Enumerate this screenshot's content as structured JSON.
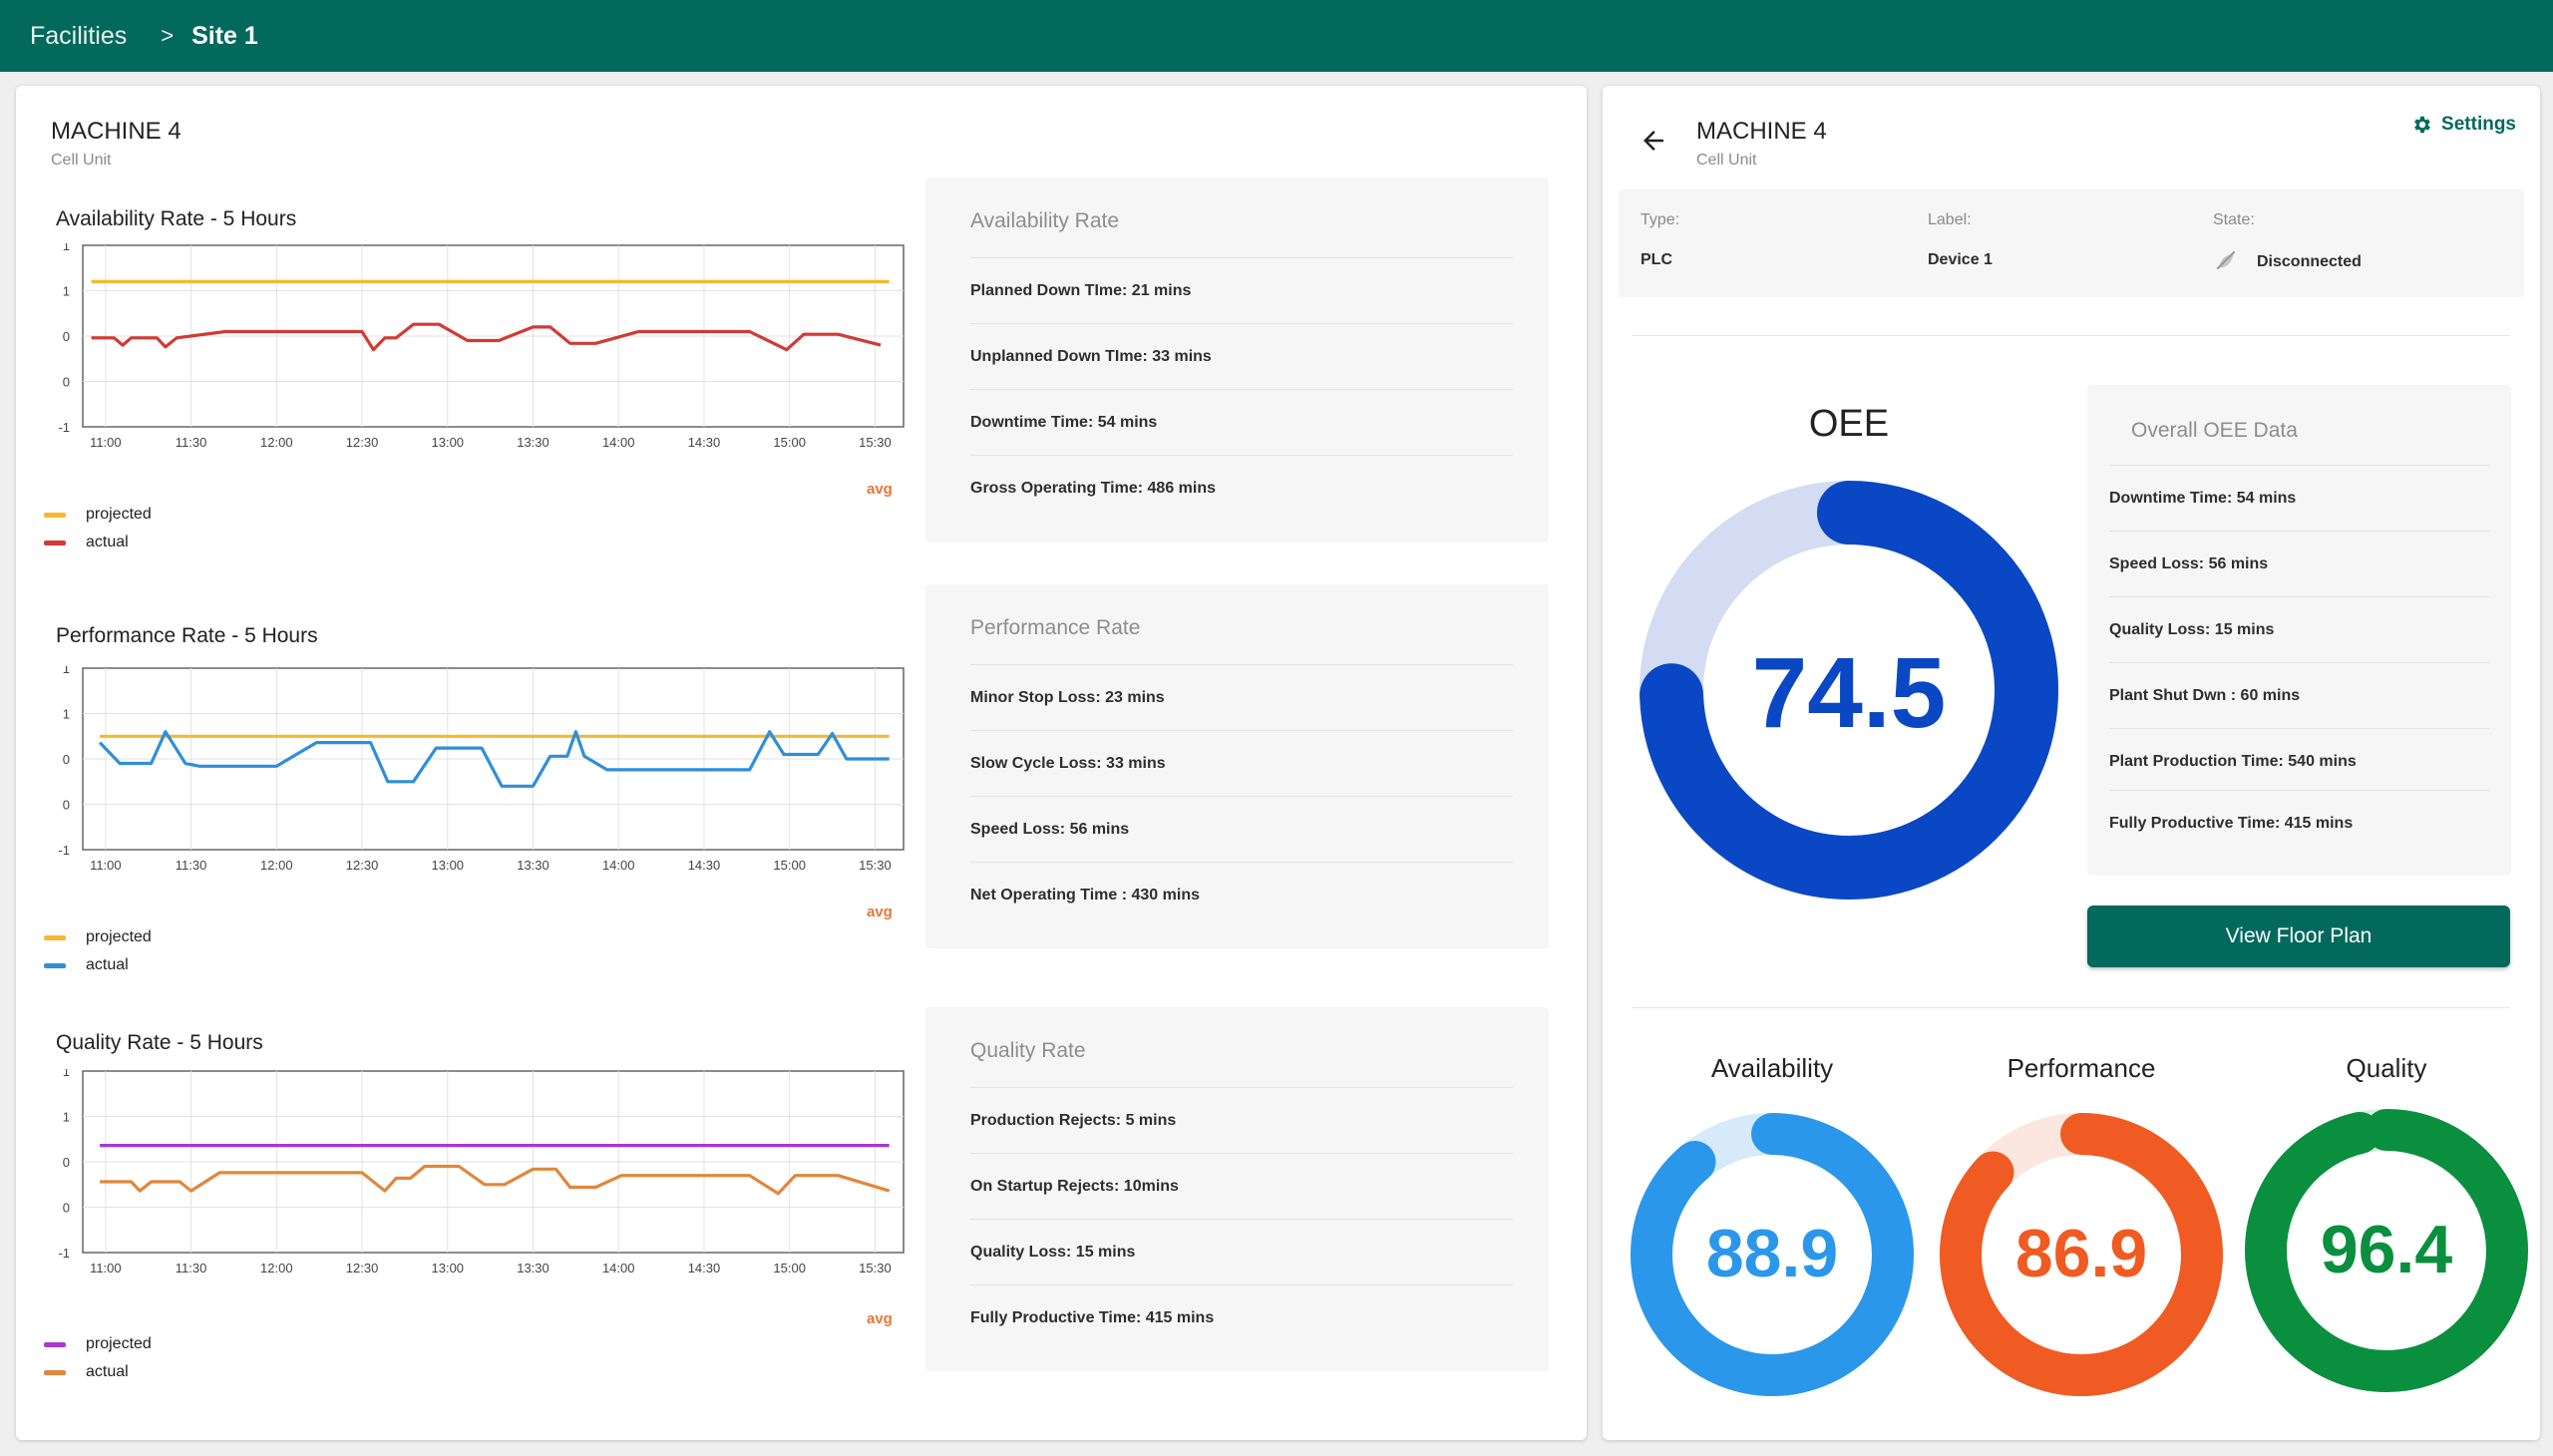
{
  "breadcrumb": {
    "parent": "Facilities",
    "separator": ">",
    "current": "Site 1"
  },
  "left": {
    "machine_name": "MACHINE 4",
    "machine_sub": "Cell Unit"
  },
  "right": {
    "machine_name": "MACHINE 4",
    "machine_sub": "Cell Unit",
    "settings_label": "Settings",
    "meta": {
      "type_label": "Type:",
      "type_value": "PLC",
      "label_label": "Label:",
      "label_value": "Device 1",
      "state_label": "State:",
      "state_value": "Disconnected"
    },
    "oee": {
      "title": "OEE",
      "value": "74.5",
      "percent": 74.5,
      "color": "#0a47c4",
      "track": "#d3dcf2"
    },
    "oee_card": {
      "title": "Overall OEE Data",
      "rows": [
        "Downtime Time: 54 mins",
        "Speed Loss: 56 mins",
        "Quality Loss: 15 mins",
        "Plant Shut Dwn : 60 mins",
        "Plant Production Time: 540 mins",
        "Fully Productive Time: 415 mins"
      ]
    },
    "floor_plan_label": "View Floor Plan",
    "gauges": [
      {
        "title": "Availability",
        "value": "88.9",
        "percent": 88.9,
        "color": "#2a97ea",
        "track": "#d7eafa"
      },
      {
        "title": "Performance",
        "value": "86.9",
        "percent": 86.9,
        "color": "#ef5b22",
        "track": "#fbe7df"
      },
      {
        "title": "Quality",
        "value": "96.4",
        "percent": 96.4,
        "color": "#0a8f3f",
        "track": "#d5efe0"
      }
    ]
  },
  "cards": [
    {
      "title": "Availability Rate",
      "rows": [
        "Planned Down TIme: 21 mins",
        "Unplanned Down TIme: 33 mins",
        "Downtime Time: 54 mins",
        "Gross Operating Time: 486 mins"
      ]
    },
    {
      "title": "Performance Rate",
      "rows": [
        "Minor Stop Loss: 23 mins",
        "Slow Cycle Loss: 33 mins",
        "Speed Loss: 56 mins",
        "Net Operating Time : 430 mins"
      ]
    },
    {
      "title": "Quality Rate",
      "rows": [
        "Production Rejects: 5 mins",
        "On Startup Rejects: 10mins",
        "Quality Loss: 15 mins",
        "Fully Productive Time: 415 mins"
      ]
    }
  ],
  "chart_data": [
    {
      "type": "line",
      "title": "Availability Rate - 5 Hours",
      "x_ticks": [
        "11:00",
        "11:30",
        "12:00",
        "12:30",
        "13:00",
        "13:30",
        "14:00",
        "14:30",
        "15:00",
        "15:30"
      ],
      "y_ticks": [
        "1",
        "1",
        "0",
        "0",
        "-1"
      ],
      "ylim": [
        -1,
        1
      ],
      "xlim": [
        "10:52",
        "15:40"
      ],
      "avg_label": "avg",
      "grid": true,
      "legend_position": "bottom-left",
      "series": [
        {
          "name": "projected",
          "color": "#f5b82e",
          "x": [
            "10:55",
            "15:35"
          ],
          "y": [
            0.6,
            0.6
          ]
        },
        {
          "name": "actual",
          "color": "#d23a36",
          "x": [
            "10:55",
            "11:03",
            "11:06",
            "11:09",
            "11:18",
            "11:21",
            "11:25",
            "11:42",
            "12:00",
            "12:17",
            "12:30",
            "12:34",
            "12:38",
            "12:42",
            "12:48",
            "12:57",
            "13:07",
            "13:12",
            "13:18",
            "13:30",
            "13:36",
            "13:43",
            "13:52",
            "14:07",
            "14:13",
            "14:30",
            "14:46",
            "14:59",
            "15:05",
            "15:17",
            "15:32"
          ],
          "y": [
            -0.02,
            -0.02,
            -0.1,
            -0.02,
            -0.02,
            -0.12,
            -0.02,
            0.05,
            0.05,
            0.05,
            0.05,
            -0.15,
            -0.02,
            -0.02,
            0.13,
            0.13,
            -0.05,
            -0.05,
            -0.05,
            0.1,
            0.1,
            -0.08,
            -0.08,
            0.05,
            0.05,
            0.05,
            0.05,
            -0.15,
            0.02,
            0.02,
            -0.1
          ]
        }
      ]
    },
    {
      "type": "line",
      "title": "Performance Rate - 5 Hours",
      "x_ticks": [
        "11:00",
        "11:30",
        "12:00",
        "12:30",
        "13:00",
        "13:30",
        "14:00",
        "14:30",
        "15:00",
        "15:30"
      ],
      "y_ticks": [
        "1",
        "1",
        "0",
        "0",
        "-1"
      ],
      "ylim": [
        -1,
        1
      ],
      "xlim": [
        "10:52",
        "15:40"
      ],
      "avg_label": "avg",
      "grid": true,
      "legend_position": "bottom-left",
      "series": [
        {
          "name": "projected",
          "color": "#f5b82e",
          "x": [
            "10:58",
            "15:35"
          ],
          "y": [
            0.25,
            0.25
          ]
        },
        {
          "name": "actual",
          "color": "#2f8fd8",
          "x": [
            "10:58",
            "11:05",
            "11:16",
            "11:21",
            "11:28",
            "11:33",
            "11:45",
            "12:00",
            "12:14",
            "12:20",
            "12:33",
            "12:39",
            "12:48",
            "12:56",
            "13:12",
            "13:19",
            "13:30",
            "13:36",
            "13:42",
            "13:45",
            "13:48",
            "13:56",
            "14:12",
            "14:30",
            "14:46",
            "14:53",
            "14:58",
            "15:10",
            "15:15",
            "15:20",
            "15:35"
          ],
          "y": [
            0.18,
            -0.05,
            -0.05,
            0.3,
            -0.05,
            -0.08,
            -0.08,
            -0.08,
            0.18,
            0.18,
            0.18,
            -0.25,
            -0.25,
            0.12,
            0.12,
            -0.3,
            -0.3,
            0.03,
            0.03,
            0.3,
            0.03,
            -0.12,
            -0.12,
            -0.12,
            -0.12,
            0.3,
            0.05,
            0.05,
            0.28,
            0.0,
            0.0
          ]
        }
      ]
    },
    {
      "type": "line",
      "title": "Quality Rate - 5 Hours",
      "x_ticks": [
        "11:00",
        "11:30",
        "12:00",
        "12:30",
        "13:00",
        "13:30",
        "14:00",
        "14:30",
        "15:00",
        "15:30"
      ],
      "y_ticks": [
        "1",
        "1",
        "0",
        "0",
        "-1"
      ],
      "ylim": [
        -1,
        1
      ],
      "xlim": [
        "10:52",
        "15:40"
      ],
      "avg_label": "avg",
      "grid": true,
      "legend_position": "bottom-left",
      "series": [
        {
          "name": "projected",
          "color": "#a637d8",
          "x": [
            "10:58",
            "15:35"
          ],
          "y": [
            0.18,
            0.18
          ]
        },
        {
          "name": "actual",
          "color": "#e0873a",
          "x": [
            "10:58",
            "11:09",
            "11:12",
            "11:16",
            "11:26",
            "11:30",
            "11:40",
            "11:53",
            "12:05",
            "12:17",
            "12:30",
            "12:38",
            "12:42",
            "12:47",
            "12:52",
            "12:59",
            "13:04",
            "13:13",
            "13:20",
            "13:30",
            "13:38",
            "13:43",
            "13:52",
            "14:01",
            "14:07",
            "14:30",
            "14:46",
            "14:56",
            "15:02",
            "15:17",
            "15:35"
          ],
          "y": [
            -0.22,
            -0.22,
            -0.32,
            -0.22,
            -0.22,
            -0.32,
            -0.12,
            -0.12,
            -0.12,
            -0.12,
            -0.12,
            -0.32,
            -0.18,
            -0.18,
            -0.05,
            -0.05,
            -0.05,
            -0.25,
            -0.25,
            -0.08,
            -0.08,
            -0.28,
            -0.28,
            -0.15,
            -0.15,
            -0.15,
            -0.15,
            -0.35,
            -0.15,
            -0.15,
            -0.32
          ]
        }
      ]
    }
  ]
}
